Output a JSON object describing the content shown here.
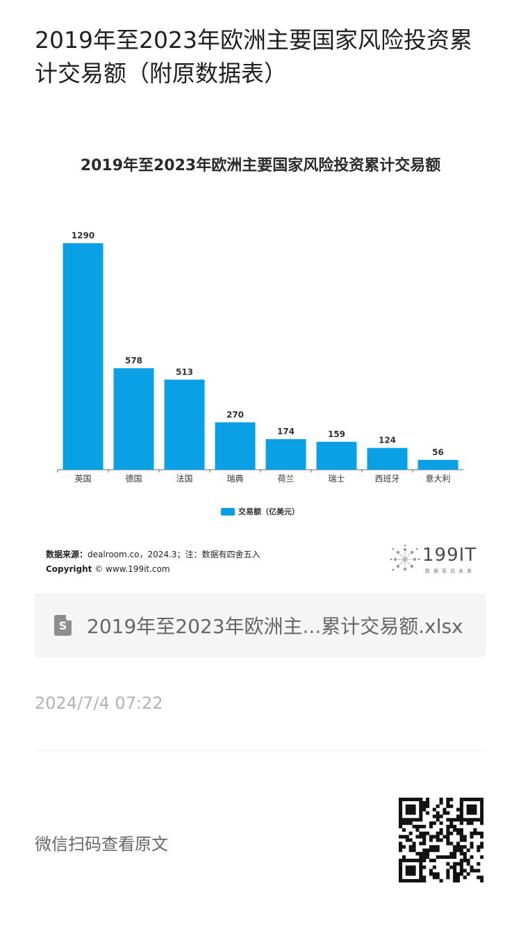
{
  "article": {
    "title": "2019年至2023年欧洲主要国家风险投资累计交易额（附原数据表）"
  },
  "chart_data": {
    "type": "bar",
    "title": "2019年至2023年欧洲主要国家风险投资累计交易额",
    "categories": [
      "英国",
      "德国",
      "法国",
      "瑞典",
      "荷兰",
      "瑞士",
      "西班牙",
      "意大利"
    ],
    "series": [
      {
        "name": "交易额（亿美元）",
        "values": [
          1290,
          578,
          513,
          270,
          174,
          159,
          124,
          56
        ]
      }
    ],
    "ylim": [
      0,
      1290
    ],
    "grid": false,
    "legend_position": "bottom",
    "bar_color": "#0aa0e6"
  },
  "chart_footer": {
    "source_label": "数据来源：",
    "source_text": "dealroom.co，2024.3；注：数据有四舍五入",
    "copyright_label": "Copyright",
    "copyright_text": " © www.199it.com",
    "brand_name": "199IT",
    "brand_tagline": "数据驱动未来"
  },
  "attachment": {
    "file_name": "2019年至2023年欧洲主...累计交易额.xlsx",
    "icon": "spreadsheet-file-icon"
  },
  "meta": {
    "timestamp": "2024/7/4 07:22",
    "scan_hint": "微信扫码查看原文"
  }
}
